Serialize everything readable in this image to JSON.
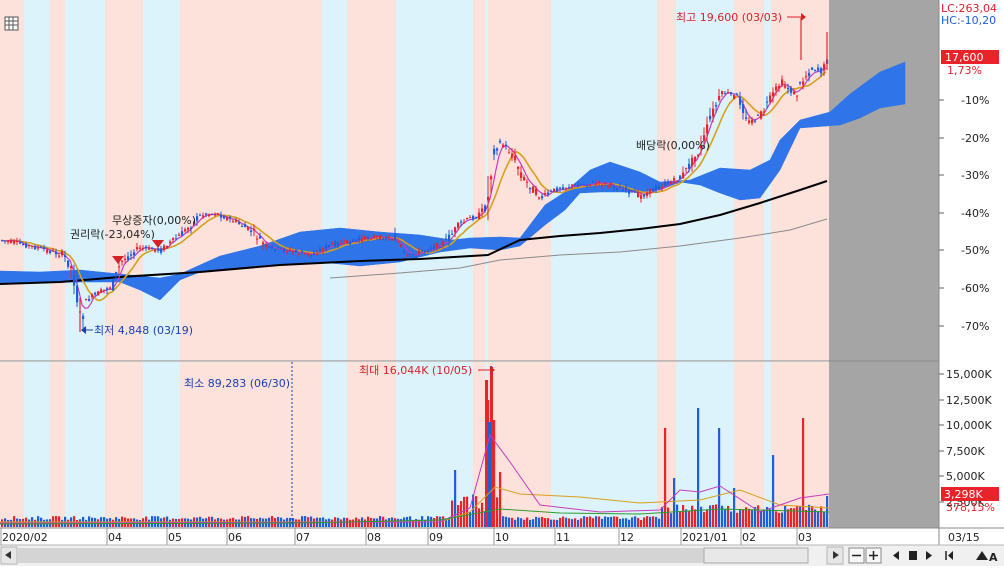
{
  "corner_icon": "table-icon",
  "top_right": {
    "lc": "LC:263,04",
    "hc": "HC:-10,20"
  },
  "price_axis": {
    "current_price": "17,600",
    "current_change": "1,73%",
    "ticks": [
      "-10%",
      "-20%",
      "-30%",
      "-40%",
      "-50%",
      "-60%",
      "-70%"
    ]
  },
  "volume_axis": {
    "ticks": [
      "15,000K",
      "12,500K",
      "10,000K",
      "7,500K",
      "5,000K",
      "2,500K"
    ],
    "current_volume": "3,298K",
    "current_ratio": "378,15%"
  },
  "annotations": {
    "high": "최고 19,600 (03/03)",
    "low": "최저 4,848 (03/19)",
    "rights": "권리락(-23,04%)",
    "bonus": "무상증자(0,00%)",
    "dividend": "배당락(0,00%)",
    "vol_max": "최대 16,044K (10/05)",
    "vol_min": "최소 89,283 (06/30)"
  },
  "x_axis": {
    "labels": [
      "2020/02",
      "04",
      "05",
      "06",
      "07",
      "08",
      "09",
      "10",
      "11",
      "12",
      "2021/01",
      "02",
      "03"
    ],
    "right_label": "03/15"
  },
  "colors": {
    "up": "#e8232a",
    "down": "#1b5fd9",
    "band_pink": "#fde2dc",
    "band_cyan": "#dcf3fb",
    "cloud": "#2f74e8",
    "ma_short": "#d8a01a",
    "ma_mid": "#c63cbf",
    "ma_long": "#000000",
    "ma_longest": "#8a8a8a",
    "future_area": "#a5a5a5"
  },
  "chart_data": {
    "type": "candlestick",
    "title": "",
    "x_range": [
      "2020/02",
      "2021/03"
    ],
    "price_series": {
      "name": "",
      "note": "monthly approximate closing price (KRW)",
      "x": [
        "2020/02",
        "2020/03",
        "2020/04",
        "2020/05",
        "2020/06",
        "2020/07",
        "2020/08",
        "2020/09",
        "2020/10",
        "2020/11",
        "2020/12",
        "2021/01",
        "2021/02",
        "2021/03"
      ],
      "y": [
        7500,
        5900,
        7300,
        8200,
        7200,
        7000,
        6900,
        7400,
        10200,
        9100,
        9000,
        12800,
        15400,
        17600
      ]
    },
    "events": [
      {
        "label": "최저",
        "value": 4848,
        "date": "03/19"
      },
      {
        "label": "권리락",
        "value": "-23,04%"
      },
      {
        "label": "무상증자",
        "value": "0,00%"
      },
      {
        "label": "배당락",
        "value": "0,00%"
      },
      {
        "label": "최고",
        "value": 19600,
        "date": "03/03"
      }
    ],
    "volume_series": {
      "unit": "K",
      "max": {
        "value": 16044,
        "date": "10/05"
      },
      "min": {
        "value": 89.283,
        "date": "06/30"
      },
      "latest": 3298,
      "y_range": [
        0,
        16000
      ]
    },
    "percent_axis_range": [
      -75,
      0
    ],
    "grid": false,
    "legend": "none"
  }
}
